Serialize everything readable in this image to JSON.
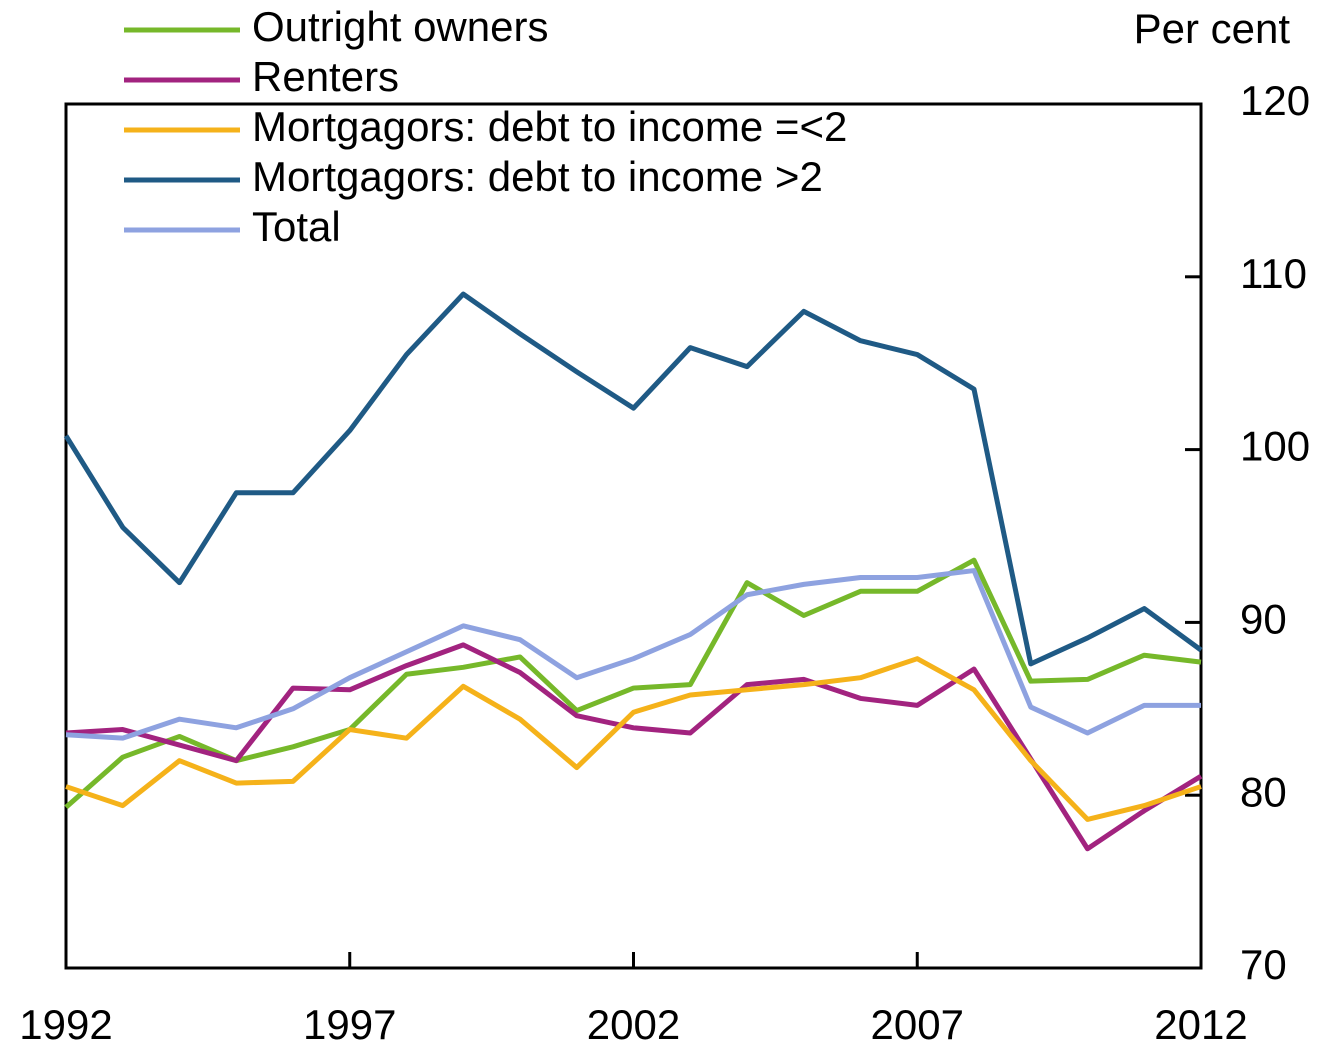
{
  "chart_data": {
    "type": "line",
    "y_axis_label": "Per cent",
    "x": [
      1992,
      1993,
      1994,
      1995,
      1996,
      1997,
      1998,
      1999,
      2000,
      2001,
      2002,
      2003,
      2004,
      2005,
      2006,
      2007,
      2008,
      2009,
      2010,
      2011,
      2012
    ],
    "xlim": [
      1992,
      2012
    ],
    "xticks": [
      1992,
      1997,
      2002,
      2007,
      2012
    ],
    "ylim": [
      70,
      120
    ],
    "yticks": [
      70,
      80,
      90,
      100,
      110,
      120
    ],
    "legend": "upper left",
    "series": [
      {
        "name": "Outright owners",
        "color": "#76b82a",
        "values": [
          79.3,
          82.2,
          83.4,
          82.0,
          82.8,
          83.8,
          87.0,
          87.4,
          88.0,
          84.9,
          86.2,
          86.4,
          92.3,
          90.4,
          91.8,
          91.8,
          93.6,
          86.6,
          86.7,
          88.1,
          87.7
        ]
      },
      {
        "name": "Renters",
        "color": "#a2237f",
        "values": [
          83.6,
          83.8,
          82.9,
          82.0,
          86.2,
          86.1,
          87.5,
          88.7,
          87.1,
          84.6,
          83.9,
          83.6,
          86.4,
          86.7,
          85.6,
          85.2,
          87.3,
          82.1,
          76.9,
          79.1,
          81.1
        ]
      },
      {
        "name": "Mortgagors: debt to income =<2",
        "color": "#f5b21a",
        "values": [
          80.5,
          79.4,
          82.0,
          80.7,
          80.8,
          83.8,
          83.3,
          86.3,
          84.4,
          81.6,
          84.8,
          85.8,
          86.1,
          86.4,
          86.8,
          87.9,
          86.1,
          82.0,
          78.6,
          79.4,
          80.5
        ]
      },
      {
        "name": "Mortgagors: debt to income >2",
        "color": "#1f5a85",
        "values": [
          100.8,
          95.5,
          92.3,
          97.5,
          97.5,
          101.1,
          105.5,
          109.0,
          106.7,
          104.5,
          102.4,
          105.9,
          104.8,
          108.0,
          106.3,
          105.5,
          103.5,
          87.6,
          89.1,
          90.8,
          88.4
        ]
      },
      {
        "name": "Total",
        "color": "#8ea2e0",
        "values": [
          83.5,
          83.3,
          84.4,
          83.9,
          85.0,
          86.8,
          88.3,
          89.8,
          89.0,
          86.8,
          87.9,
          89.3,
          91.6,
          92.2,
          92.6,
          92.6,
          93.0,
          85.1,
          83.6,
          85.2,
          85.2
        ]
      }
    ]
  }
}
